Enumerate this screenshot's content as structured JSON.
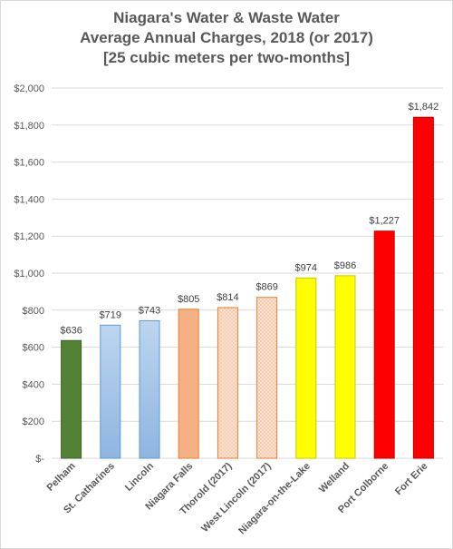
{
  "chart_data": {
    "type": "bar",
    "title_lines": [
      "Niagara's Water & Waste Water",
      "Average Annual Charges, 2018 (or 2017)",
      "[25 cubic meters per two-months]"
    ],
    "categories": [
      "Pelham",
      "St. Catharines",
      "Lincoln",
      "Niagara Falls",
      "Thorold (2017)",
      "West Lincoln (2017)",
      "Niagara-on-the-Lake",
      "Welland",
      "Port Colborne",
      "Fort Erie"
    ],
    "values": [
      636,
      719,
      743,
      805,
      814,
      869,
      974,
      986,
      1227,
      1842
    ],
    "data_labels": [
      "$636",
      "$719",
      "$743",
      "$805",
      "$814",
      "$869",
      "$974",
      "$986",
      "$1,227",
      "$1,842"
    ],
    "bar_styles": [
      {
        "fill": "#548235",
        "stroke": "#3d6127",
        "pattern": "solid"
      },
      {
        "fill": "#a9c8ea",
        "stroke": "#5b9bd5",
        "pattern": "gradient-blue"
      },
      {
        "fill": "#a9c8ea",
        "stroke": "#5b9bd5",
        "pattern": "gradient-blue"
      },
      {
        "fill": "#f4b183",
        "stroke": "#ed7d31",
        "pattern": "solid"
      },
      {
        "fill": "#f8cbad",
        "stroke": "#ed7d31",
        "pattern": "dots"
      },
      {
        "fill": "#f8cbad",
        "stroke": "#ed7d31",
        "pattern": "dots"
      },
      {
        "fill": "#ffff00",
        "stroke": "#c9c900",
        "pattern": "solid"
      },
      {
        "fill": "#ffff00",
        "stroke": "#c9c900",
        "pattern": "solid"
      },
      {
        "fill": "#ff0000",
        "stroke": "#c00000",
        "pattern": "solid"
      },
      {
        "fill": "#ff0000",
        "stroke": "#c00000",
        "pattern": "solid"
      }
    ],
    "y_ticks": [
      0,
      200,
      400,
      600,
      800,
      1000,
      1200,
      1400,
      1600,
      1800,
      2000
    ],
    "y_tick_labels": [
      "$-",
      "$200",
      "$400",
      "$600",
      "$800",
      "$1,000",
      "$1,200",
      "$1,400",
      "$1,600",
      "$1,800",
      "$2,000"
    ],
    "ylim": [
      0,
      2000
    ],
    "grid": true,
    "legend": "none"
  }
}
